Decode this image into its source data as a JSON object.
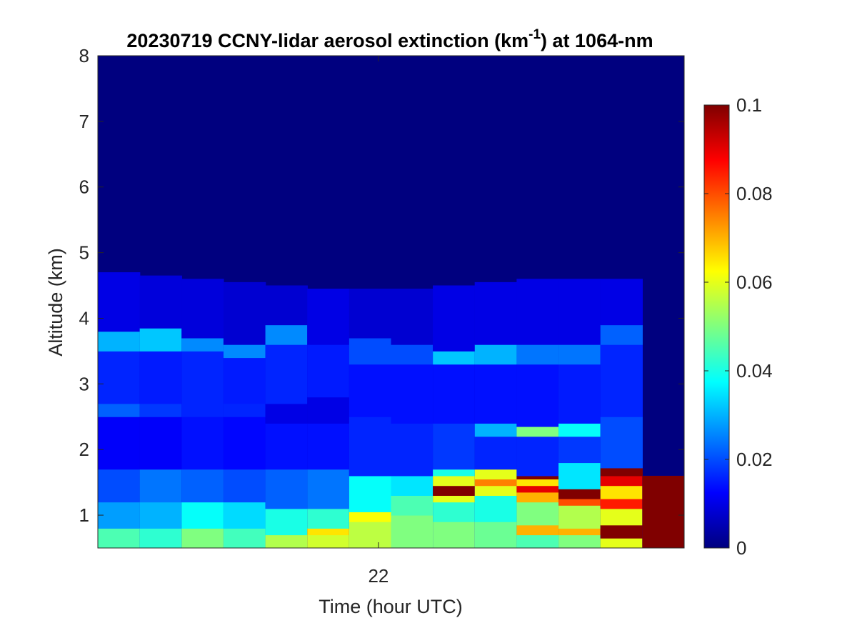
{
  "chart_data": {
    "type": "heatmap",
    "title_main": "20230719 CCNY-lidar aerosol extinction (km",
    "title_sup": "-1",
    "title_end": ") at 1064-nm",
    "xlabel": "Time (hour UTC)",
    "ylabel": "Altitude (km)",
    "x_ticks": [
      {
        "value": 22,
        "label": "22"
      }
    ],
    "y_ticks": [
      {
        "value": 1,
        "label": "1"
      },
      {
        "value": 2,
        "label": "2"
      },
      {
        "value": 3,
        "label": "3"
      },
      {
        "value": 4,
        "label": "4"
      },
      {
        "value": 5,
        "label": "5"
      },
      {
        "value": 6,
        "label": "6"
      },
      {
        "value": 7,
        "label": "7"
      },
      {
        "value": 8,
        "label": "8"
      }
    ],
    "ylim": [
      0.5,
      8
    ],
    "xlim": [
      21.33,
      22.73
    ],
    "colormap": "jet",
    "colorbar": {
      "range": [
        0,
        0.1
      ],
      "ticks": [
        {
          "value": 0,
          "label": "0"
        },
        {
          "value": 0.02,
          "label": "0.02"
        },
        {
          "value": 0.04,
          "label": "0.04"
        },
        {
          "value": 0.06,
          "label": "0.06"
        },
        {
          "value": 0.08,
          "label": "0.08"
        },
        {
          "value": 0.1,
          "label": "0.1"
        }
      ]
    },
    "x_bins": [
      21.33,
      21.43,
      21.53,
      21.63,
      21.73,
      21.83,
      21.93,
      22.03,
      22.13,
      22.23,
      22.33,
      22.43,
      22.53,
      22.63,
      22.73
    ],
    "profiles": [
      {
        "top": 4.7,
        "layers": [
          {
            "y0": 0.5,
            "y1": 0.8,
            "v": 0.045
          },
          {
            "y0": 0.8,
            "y1": 1.2,
            "v": 0.028
          },
          {
            "y0": 1.2,
            "y1": 1.7,
            "v": 0.02
          },
          {
            "y0": 1.7,
            "y1": 2.5,
            "v": 0.012
          },
          {
            "y0": 2.5,
            "y1": 2.7,
            "v": 0.022
          },
          {
            "y0": 2.7,
            "y1": 3.5,
            "v": 0.016
          },
          {
            "y0": 3.5,
            "y1": 3.8,
            "v": 0.03
          },
          {
            "y0": 3.8,
            "y1": 4.7,
            "v": 0.01
          }
        ]
      },
      {
        "top": 4.65,
        "layers": [
          {
            "y0": 0.5,
            "y1": 0.8,
            "v": 0.042
          },
          {
            "y0": 0.8,
            "y1": 1.2,
            "v": 0.03
          },
          {
            "y0": 1.2,
            "y1": 1.7,
            "v": 0.024
          },
          {
            "y0": 1.7,
            "y1": 2.5,
            "v": 0.012
          },
          {
            "y0": 2.5,
            "y1": 2.7,
            "v": 0.018
          },
          {
            "y0": 2.7,
            "y1": 3.5,
            "v": 0.015
          },
          {
            "y0": 3.5,
            "y1": 3.85,
            "v": 0.032
          },
          {
            "y0": 3.85,
            "y1": 4.65,
            "v": 0.009
          }
        ]
      },
      {
        "top": 4.6,
        "layers": [
          {
            "y0": 0.5,
            "y1": 0.8,
            "v": 0.05
          },
          {
            "y0": 0.8,
            "y1": 1.2,
            "v": 0.038
          },
          {
            "y0": 1.2,
            "y1": 1.7,
            "v": 0.022
          },
          {
            "y0": 1.7,
            "y1": 2.5,
            "v": 0.014
          },
          {
            "y0": 2.5,
            "y1": 2.7,
            "v": 0.016
          },
          {
            "y0": 2.7,
            "y1": 3.5,
            "v": 0.016
          },
          {
            "y0": 3.5,
            "y1": 3.7,
            "v": 0.026
          },
          {
            "y0": 3.7,
            "y1": 4.6,
            "v": 0.009
          }
        ]
      },
      {
        "top": 4.55,
        "layers": [
          {
            "y0": 0.5,
            "y1": 0.8,
            "v": 0.044
          },
          {
            "y0": 0.8,
            "y1": 1.2,
            "v": 0.034
          },
          {
            "y0": 1.2,
            "y1": 1.7,
            "v": 0.02
          },
          {
            "y0": 1.7,
            "y1": 2.5,
            "v": 0.013
          },
          {
            "y0": 2.5,
            "y1": 2.7,
            "v": 0.016
          },
          {
            "y0": 2.7,
            "y1": 3.4,
            "v": 0.015
          },
          {
            "y0": 3.4,
            "y1": 3.6,
            "v": 0.026
          },
          {
            "y0": 3.6,
            "y1": 4.55,
            "v": 0.008
          }
        ]
      },
      {
        "top": 4.5,
        "layers": [
          {
            "y0": 0.5,
            "y1": 0.7,
            "v": 0.055
          },
          {
            "y0": 0.7,
            "y1": 1.1,
            "v": 0.04
          },
          {
            "y0": 1.1,
            "y1": 1.7,
            "v": 0.022
          },
          {
            "y0": 1.7,
            "y1": 2.4,
            "v": 0.014
          },
          {
            "y0": 2.4,
            "y1": 2.7,
            "v": 0.01
          },
          {
            "y0": 2.7,
            "y1": 3.6,
            "v": 0.016
          },
          {
            "y0": 3.6,
            "y1": 3.9,
            "v": 0.026
          },
          {
            "y0": 3.9,
            "y1": 4.5,
            "v": 0.008
          }
        ]
      },
      {
        "top": 4.45,
        "layers": [
          {
            "y0": 0.5,
            "y1": 0.7,
            "v": 0.058
          },
          {
            "y0": 0.7,
            "y1": 0.8,
            "v": 0.065
          },
          {
            "y0": 0.8,
            "y1": 1.1,
            "v": 0.042
          },
          {
            "y0": 1.1,
            "y1": 1.7,
            "v": 0.024
          },
          {
            "y0": 1.7,
            "y1": 2.4,
            "v": 0.014
          },
          {
            "y0": 2.4,
            "y1": 2.8,
            "v": 0.01
          },
          {
            "y0": 2.8,
            "y1": 3.6,
            "v": 0.015
          },
          {
            "y0": 3.6,
            "y1": 4.45,
            "v": 0.01
          }
        ]
      },
      {
        "top": 4.45,
        "layers": [
          {
            "y0": 0.5,
            "y1": 0.9,
            "v": 0.056
          },
          {
            "y0": 0.9,
            "y1": 1.05,
            "v": 0.062
          },
          {
            "y0": 1.05,
            "y1": 1.6,
            "v": 0.038
          },
          {
            "y0": 1.6,
            "y1": 2.5,
            "v": 0.016
          },
          {
            "y0": 2.5,
            "y1": 3.3,
            "v": 0.014
          },
          {
            "y0": 3.3,
            "y1": 3.7,
            "v": 0.02
          },
          {
            "y0": 3.7,
            "y1": 4.45,
            "v": 0.008
          }
        ]
      },
      {
        "top": 4.45,
        "layers": [
          {
            "y0": 0.5,
            "y1": 1.0,
            "v": 0.05
          },
          {
            "y0": 1.0,
            "y1": 1.3,
            "v": 0.045
          },
          {
            "y0": 1.3,
            "y1": 1.6,
            "v": 0.035
          },
          {
            "y0": 1.6,
            "y1": 2.4,
            "v": 0.016
          },
          {
            "y0": 2.4,
            "y1": 3.3,
            "v": 0.014
          },
          {
            "y0": 3.3,
            "y1": 3.6,
            "v": 0.02
          },
          {
            "y0": 3.6,
            "y1": 4.45,
            "v": 0.008
          }
        ]
      },
      {
        "top": 4.5,
        "layers": [
          {
            "y0": 0.5,
            "y1": 0.9,
            "v": 0.05
          },
          {
            "y0": 0.9,
            "y1": 1.2,
            "v": 0.042
          },
          {
            "y0": 1.2,
            "y1": 1.3,
            "v": 0.06
          },
          {
            "y0": 1.3,
            "y1": 1.45,
            "v": 0.1
          },
          {
            "y0": 1.45,
            "y1": 1.6,
            "v": 0.06
          },
          {
            "y0": 1.6,
            "y1": 1.7,
            "v": 0.04
          },
          {
            "y0": 1.7,
            "y1": 2.4,
            "v": 0.018
          },
          {
            "y0": 2.4,
            "y1": 3.3,
            "v": 0.014
          },
          {
            "y0": 3.3,
            "y1": 3.5,
            "v": 0.032
          },
          {
            "y0": 3.5,
            "y1": 4.5,
            "v": 0.01
          }
        ]
      },
      {
        "top": 4.55,
        "layers": [
          {
            "y0": 0.5,
            "y1": 0.9,
            "v": 0.048
          },
          {
            "y0": 0.9,
            "y1": 1.3,
            "v": 0.04
          },
          {
            "y0": 1.3,
            "y1": 1.45,
            "v": 0.06
          },
          {
            "y0": 1.45,
            "y1": 1.55,
            "v": 0.075
          },
          {
            "y0": 1.55,
            "y1": 1.7,
            "v": 0.06
          },
          {
            "y0": 1.7,
            "y1": 2.2,
            "v": 0.016
          },
          {
            "y0": 2.2,
            "y1": 2.4,
            "v": 0.03
          },
          {
            "y0": 2.4,
            "y1": 3.3,
            "v": 0.014
          },
          {
            "y0": 3.3,
            "y1": 3.6,
            "v": 0.03
          },
          {
            "y0": 3.6,
            "y1": 4.55,
            "v": 0.01
          }
        ]
      },
      {
        "top": 4.6,
        "layers": [
          {
            "y0": 0.5,
            "y1": 0.7,
            "v": 0.045
          },
          {
            "y0": 0.7,
            "y1": 0.85,
            "v": 0.07
          },
          {
            "y0": 0.85,
            "y1": 1.2,
            "v": 0.05
          },
          {
            "y0": 1.2,
            "y1": 1.35,
            "v": 0.07
          },
          {
            "y0": 1.35,
            "y1": 1.45,
            "v": 0.09
          },
          {
            "y0": 1.45,
            "y1": 1.55,
            "v": 0.065
          },
          {
            "y0": 1.55,
            "y1": 1.6,
            "v": 0.1
          },
          {
            "y0": 1.6,
            "y1": 2.2,
            "v": 0.016
          },
          {
            "y0": 2.2,
            "y1": 2.35,
            "v": 0.05
          },
          {
            "y0": 2.35,
            "y1": 3.3,
            "v": 0.014
          },
          {
            "y0": 3.3,
            "y1": 3.6,
            "v": 0.024
          },
          {
            "y0": 3.6,
            "y1": 4.6,
            "v": 0.01
          }
        ]
      },
      {
        "top": 4.6,
        "layers": [
          {
            "y0": 0.5,
            "y1": 0.7,
            "v": 0.05
          },
          {
            "y0": 0.7,
            "y1": 0.8,
            "v": 0.07
          },
          {
            "y0": 0.8,
            "y1": 1.15,
            "v": 0.055
          },
          {
            "y0": 1.15,
            "y1": 1.25,
            "v": 0.08
          },
          {
            "y0": 1.25,
            "y1": 1.4,
            "v": 0.1
          },
          {
            "y0": 1.4,
            "y1": 1.8,
            "v": 0.035
          },
          {
            "y0": 1.8,
            "y1": 2.2,
            "v": 0.018
          },
          {
            "y0": 2.2,
            "y1": 2.4,
            "v": 0.038
          },
          {
            "y0": 2.4,
            "y1": 3.3,
            "v": 0.015
          },
          {
            "y0": 3.3,
            "y1": 3.6,
            "v": 0.024
          },
          {
            "y0": 3.6,
            "y1": 4.6,
            "v": 0.01
          }
        ]
      },
      {
        "top": 4.6,
        "layers": [
          {
            "y0": 0.5,
            "y1": 0.65,
            "v": 0.06
          },
          {
            "y0": 0.65,
            "y1": 0.85,
            "v": 0.1
          },
          {
            "y0": 0.85,
            "y1": 1.1,
            "v": 0.06
          },
          {
            "y0": 1.1,
            "y1": 1.25,
            "v": 0.085
          },
          {
            "y0": 1.25,
            "y1": 1.45,
            "v": 0.065
          },
          {
            "y0": 1.45,
            "y1": 1.6,
            "v": 0.09
          },
          {
            "y0": 1.6,
            "y1": 1.72,
            "v": 0.1
          },
          {
            "y0": 1.72,
            "y1": 2.5,
            "v": 0.02
          },
          {
            "y0": 2.5,
            "y1": 3.6,
            "v": 0.016
          },
          {
            "y0": 3.6,
            "y1": 3.9,
            "v": 0.022
          },
          {
            "y0": 3.9,
            "y1": 4.6,
            "v": 0.01
          }
        ]
      },
      {
        "top": 1.6,
        "layers": [
          {
            "y0": 0.5,
            "y1": 1.6,
            "v": 0.1
          }
        ]
      }
    ]
  }
}
